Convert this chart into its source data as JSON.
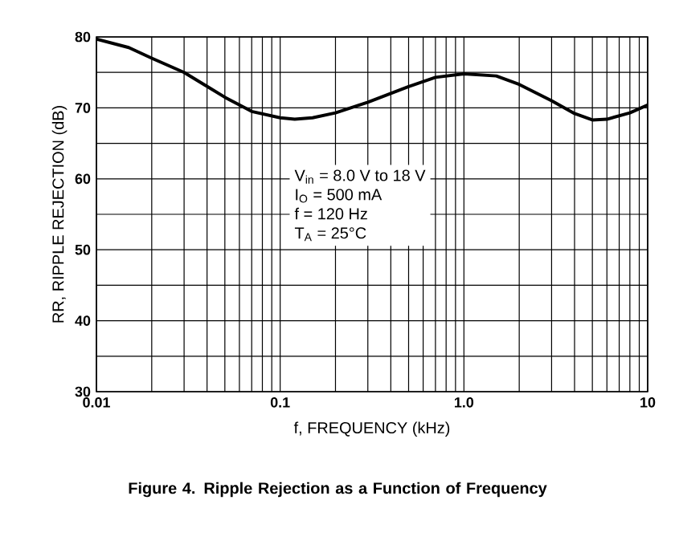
{
  "chart_data": {
    "type": "line",
    "title": "Figure 4. Ripple Rejection as a Function of Frequency",
    "xlabel": "f, FREQUENCY (kHz)",
    "ylabel": "RR, RIPPLE REJECTION (dB)",
    "annotations": [
      "V$_{in}$ = 8.0 V to 18 V",
      "I$_{O}$ = 500 mA",
      "f = 120 Hz",
      "T$_{A}$ = 25°C"
    ],
    "x": [
      0.01,
      0.015,
      0.02,
      0.03,
      0.05,
      0.07,
      0.1,
      0.12,
      0.15,
      0.2,
      0.3,
      0.5,
      0.7,
      1.0,
      1.5,
      2,
      3,
      4,
      5,
      6,
      8,
      10
    ],
    "values": [
      79.7,
      78.5,
      77,
      75,
      71.5,
      69.5,
      68.6,
      68.4,
      68.6,
      69.3,
      70.8,
      73,
      74.3,
      74.8,
      74.5,
      73.3,
      71,
      69.2,
      68.3,
      68.4,
      69.3,
      70.4
    ],
    "color": "#000000",
    "log": "x",
    "grid": true,
    "xlim": [
      0.01,
      10
    ],
    "ylim": [
      30,
      80
    ],
    "xticks": [
      0.01,
      {
        "value": 0.02,
        "label": null
      },
      {
        "value": 0.03,
        "label": null
      },
      {
        "value": 0.04,
        "label": null
      },
      {
        "value": 0.05,
        "label": null
      },
      {
        "value": 0.06,
        "label": null
      },
      {
        "value": 0.07,
        "label": null
      },
      {
        "value": 0.08,
        "label": null
      },
      {
        "value": 0.09,
        "label": null
      },
      0.1,
      {
        "value": 0.2,
        "label": null
      },
      {
        "value": 0.3,
        "label": null
      },
      {
        "value": 0.4,
        "label": null
      },
      {
        "value": 0.5,
        "label": null
      },
      {
        "value": 0.6,
        "label": null
      },
      {
        "value": 0.7,
        "label": null
      },
      {
        "value": 0.8,
        "label": null
      },
      {
        "value": 0.9,
        "label": null
      },
      {
        "value": 1,
        "label": "1.0"
      },
      {
        "value": 2,
        "label": null
      },
      {
        "value": 3,
        "label": null
      },
      {
        "value": 4,
        "label": null
      },
      {
        "value": 5,
        "label": null
      },
      {
        "value": 6,
        "label": null
      },
      {
        "value": 7,
        "label": null
      },
      {
        "value": 8,
        "label": null
      },
      {
        "value": 9,
        "label": null
      },
      10
    ],
    "yticks": [
      30,
      {
        "value": 35,
        "label": null
      },
      40,
      {
        "value": 45,
        "label": null
      },
      50,
      {
        "value": 55,
        "label": null
      },
      60,
      {
        "value": 65,
        "label": null
      },
      70,
      {
        "value": 75,
        "label": null
      },
      80
    ]
  }
}
